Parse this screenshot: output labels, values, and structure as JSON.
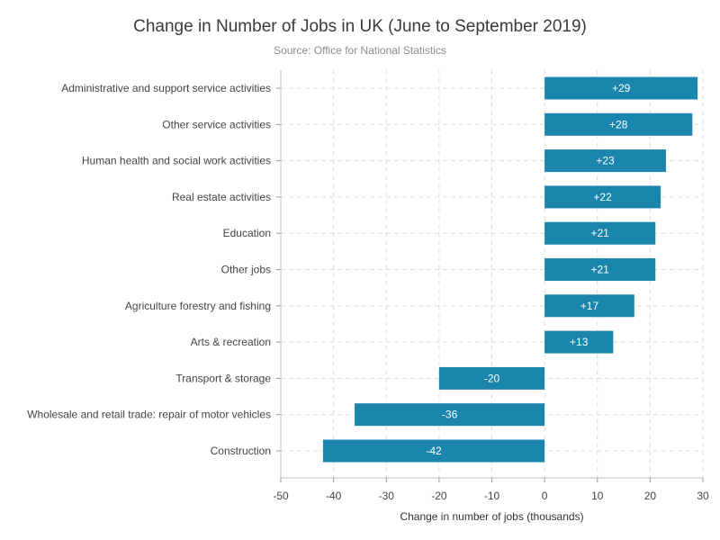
{
  "chart_data": {
    "type": "bar",
    "orientation": "horizontal",
    "title": "Change in Number of Jobs in UK (June to September 2019)",
    "subtitle": "Source: Office for National Statistics",
    "xlabel": "Change in number of jobs (thousands)",
    "ylabel": "",
    "xlim": [
      -50,
      30
    ],
    "xticks": [
      -50,
      -40,
      -30,
      -20,
      -10,
      0,
      10,
      20,
      30
    ],
    "grid": true,
    "bar_color": "#1a85ad",
    "categories": [
      "Administrative and support service activities",
      "Other service activities",
      "Human health and social work activities",
      "Real estate activities",
      "Education",
      "Other jobs",
      "Agriculture forestry and fishing",
      "Arts & recreation",
      "Transport & storage",
      "Wholesale and retail trade: repair of motor vehicles",
      "Construction"
    ],
    "values": [
      29,
      28,
      23,
      22,
      21,
      21,
      17,
      13,
      -20,
      -36,
      -42
    ],
    "data_labels": [
      "+29",
      "+28",
      "+23",
      "+22",
      "+21",
      "+21",
      "+17",
      "+13",
      "-20",
      "-36",
      "-42"
    ]
  }
}
